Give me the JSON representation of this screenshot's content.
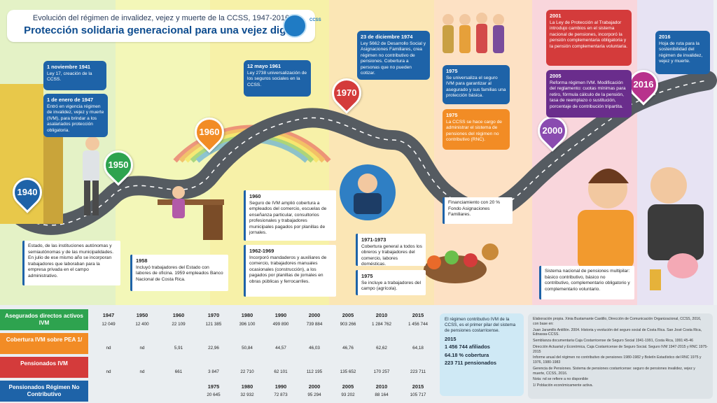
{
  "header": {
    "subtitle": "Evolución del régimen de invalidez, vejez y muerte de la CCSS, 1947-2016",
    "title": "Protección solidaria generacional para una vejez digna",
    "logo_text": "CCSS"
  },
  "colors": {
    "blue": "#1e63a8",
    "orange": "#f28c25",
    "red": "#d43b3b",
    "purple": "#6a2d8c"
  },
  "years": [
    "1940",
    "1950",
    "1960",
    "1970",
    "2000",
    "2016"
  ],
  "events": {
    "e1941": {
      "date": "1 noviembre 1941",
      "text": "Ley 17, creación de la CCSS."
    },
    "e1947": {
      "date": "1 de enero de 1947",
      "text": "Entró en vigencia régimen de invalidez, vejez y muerte (IVM), para brindar a los asalariados protección obligatoria."
    },
    "e1961": {
      "date": "12 mayo 1961",
      "text": "Ley 2738 universalización de los seguros sociales en la CCSS."
    },
    "e1974": {
      "date": "23 de diciembre 1974",
      "text": "Ley 5662 de Desarrollo Social y Asignaciones Familiares, crea régimen no contributivo de pensiones. Cobertura a personas que no pueden cotizar."
    },
    "e1975a": {
      "date": "1975",
      "text": "Se universaliza el seguro IVM para garantizar al asegurado y sus familias una protección básica."
    },
    "e1975b": {
      "date": "1975",
      "text": "La CCSS se hace cargo de administrar el sistema de pensiones del régimen no contributivo (RNC)."
    },
    "e2001": {
      "date": "2001",
      "text": "La Ley de Protección al Trabajador introdujo cambios en el sistema nacional de pensiones, incorporó la pensión complementaria obligatoria y la pensión complementaria voluntaria."
    },
    "e2005": {
      "date": "2005",
      "text": "Reforma régimen IVM. Modificación del reglamento: cuotas mínimas para retiro, fórmula cálculo de la pensión, tasa de reemplazo o sustitución, porcentaje de contribución tripartita."
    },
    "e2016": {
      "date": "2016",
      "text": "Hoja de ruta para la sostenibilidad del régimen de invalidez, vejez y muerte."
    },
    "estado": {
      "text": "Estado, de las instituciones autónomas y semiautónomas y de las municipalidades. En julio de ese mismo año se incorporan trabajadores que laboraban para la empresa privada en el campo administrativo."
    },
    "e1958": {
      "date": "1958",
      "text": "Incluyó trabajadores del Estado con labores de oficina. 1959 empleados Banco Nacional de Costa Rica."
    },
    "e1960": {
      "date": "1960",
      "text": "Seguro de IVM amplió cobertura a empleados del comercio, escuelas de enseñanza particular, consultorios profesionales y trabajadores municipales pagados por planillas de jornales."
    },
    "e1962": {
      "date": "1962-1969",
      "text": "Incorporó mandaderos y auxiliares de comercio, trabajadores manuales ocasionales (construcción), a los pagados por planillas de jornales en obras públicas y ferrocarriles."
    },
    "e1971": {
      "date": "1971-1973",
      "text": "Cobertura general a todos los obreros y trabajadores del comercio, labores domésticas."
    },
    "e1975c": {
      "date": "1975",
      "text": "Se incluye a trabajadores del campo (agrícola)."
    },
    "fin": {
      "text": "Financiamiento con 20 % Fondo Asignaciones Familiares."
    },
    "multi": {
      "text": "Sistema nacional de pensiones multipilar: básico contributivo, básico no contributivo, complementario obligatorio y complementario voluntario."
    }
  },
  "table": {
    "row_labels": [
      "Asegurados directos activos IVM",
      "Cobertura IVM sobre PEA 1/",
      "Pensionados IVM",
      "Pensionados Régimen No Contributivo"
    ],
    "years_main": [
      "1947",
      "1950",
      "1960",
      "1970",
      "1980",
      "1990",
      "2000",
      "2005",
      "2010",
      "2015"
    ],
    "asegurados": [
      "12 049",
      "12 400",
      "22 109",
      "121 385",
      "396 100",
      "499 890",
      "739 884",
      "903 266",
      "1 284 762",
      "1 456 744"
    ],
    "cobertura": [
      "nd",
      "nd",
      "5,91",
      "22,96",
      "50,84",
      "44,57",
      "46,03",
      "46,76",
      "62,62",
      "64,18"
    ],
    "pensionados": [
      "nd",
      "nd",
      "661",
      "3 847",
      "22 710",
      "62 101",
      "112 195",
      "135 652",
      "170 257",
      "223 711"
    ],
    "years_rnc": [
      "1975",
      "1980",
      "1990",
      "2000",
      "2005",
      "2010",
      "2015"
    ],
    "rnc": [
      "20 645",
      "32 932",
      "72 873",
      "95 294",
      "93 202",
      "88 164",
      "105 717"
    ]
  },
  "summary": {
    "intro": "El régimen contributivo IVM de la CCSS, es el primer pilar del sistema de pensiones costarricense.",
    "year": "2015",
    "l1": "1 456 744 afiliados",
    "l2": "64.18 % cobertura",
    "l3": "223 711 pensionados"
  },
  "sources": [
    "Elaboración propia. Xinia Bustamante Castillo, Dirección de Comunicación Organizacional, CCSS, 2016, con base en:",
    "Juan Jaramillo Antillón. 2004. Historia y evolución del seguro social de Costa Rica. San José Costa Rica, Ednassa-CCSS.",
    "Semblanza documentaria Caja Costarricense de Seguro Social 1941-1991, Costa Rica, 1991:45-46",
    "Dirección Actuarial y Económica, Caja Costarricense de Seguro Social. Seguro IVM 1947-2015 y RNC 1975-2015",
    "Informe anual del régimen no contributivo de pensiones 1980-1982 y Boletín Estadístico del RNC 1975 y 1976, 1980-1983",
    "Gerencia de Pensiones. Sistema de pensiones costarricense: seguro de pensiones invalidez, vejez y muerte, CCSS, 2016.",
    "Nota: nd se refiere a no disponible",
    "1/ Población económicamente activa."
  ]
}
